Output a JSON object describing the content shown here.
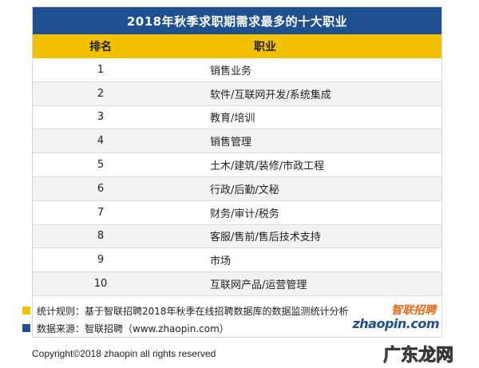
{
  "title": "2018年秋季求职期需求最多的十大职业",
  "columns": {
    "rank": "排名",
    "job": "职业"
  },
  "rows": [
    {
      "rank": "1",
      "job": "销售业务"
    },
    {
      "rank": "2",
      "job": "软件/互联网开发/系统集成"
    },
    {
      "rank": "3",
      "job": "教育/培训"
    },
    {
      "rank": "4",
      "job": "销售管理"
    },
    {
      "rank": "5",
      "job": "土木/建筑/装修/市政工程"
    },
    {
      "rank": "6",
      "job": "行政/后勤/文秘"
    },
    {
      "rank": "7",
      "job": "财务/审计/税务"
    },
    {
      "rank": "8",
      "job": "客服/售前/售后技术支持"
    },
    {
      "rank": "9",
      "job": "市场"
    },
    {
      "rank": "10",
      "job": "互联网产品/运营管理"
    }
  ],
  "notes": {
    "rule": "统计规则：基于智联招聘2018年秋季在线招聘数据库的数据监测统计分析",
    "source": "数据来源：智联招聘（www.zhaopin.com）"
  },
  "logo": {
    "cn": "智联招聘",
    "en": "zhaopin.com"
  },
  "copyright": "Copyright©2018 zhaopin all rights reserved",
  "watermark": "广东龙网",
  "colors": {
    "header_blue": "#1e4f8f",
    "header_yellow": "#f2c200",
    "logo_orange": "#e36b1b"
  }
}
